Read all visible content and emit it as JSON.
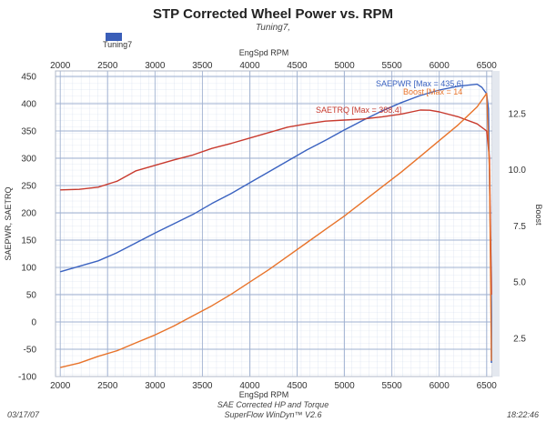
{
  "chart_data": {
    "type": "line",
    "title": "STP Corrected Wheel Power vs. RPM",
    "subtitle": "Tuning7,",
    "legend": [
      {
        "name": "Tuning7",
        "color": "#3a5eb8"
      }
    ],
    "xlabel_top": "EngSpd  RPM",
    "xlabel_bottom": "EngSpd  RPM",
    "ylabel_left": "SAEPWR, SAETRQ",
    "ylabel_right": "Boost",
    "xlim": [
      1950,
      6560
    ],
    "ylim_left": [
      -100,
      460
    ],
    "ylim_right": [
      0.8,
      14.4
    ],
    "x_ticks": [
      2000,
      2500,
      3000,
      3500,
      4000,
      4500,
      5000,
      5500,
      6000,
      6500
    ],
    "y_ticks_left": [
      -100,
      -50,
      0,
      50,
      100,
      150,
      200,
      250,
      300,
      350,
      400,
      450
    ],
    "y_ticks_right": [
      2.5,
      5.0,
      7.5,
      10.0,
      12.5
    ],
    "series": [
      {
        "name": "SAEPWR",
        "axis": "left",
        "color": "#3a62c0",
        "label": "SAEPWR [Max = 435.6]",
        "x": [
          2000,
          2200,
          2400,
          2600,
          2800,
          3000,
          3200,
          3400,
          3600,
          3800,
          4000,
          4200,
          4400,
          4600,
          4800,
          5000,
          5200,
          5400,
          5600,
          5800,
          6000,
          6200,
          6400,
          6450,
          6500,
          6520,
          6540,
          6550,
          6550
        ],
        "values": [
          92,
          102,
          112,
          127,
          145,
          163,
          180,
          197,
          217,
          235,
          255,
          275,
          295,
          315,
          333,
          352,
          370,
          387,
          402,
          415,
          425,
          432,
          435.6,
          430,
          418,
          390,
          150,
          10,
          -75
        ]
      },
      {
        "name": "SAETRQ",
        "axis": "left",
        "color": "#c83a2e",
        "label": "SAETRQ [Max = 388.4]",
        "x": [
          2000,
          2200,
          2400,
          2600,
          2800,
          3000,
          3200,
          3400,
          3600,
          3800,
          4000,
          4200,
          4400,
          4600,
          4800,
          5000,
          5200,
          5400,
          5600,
          5800,
          5900,
          6000,
          6200,
          6400,
          6500,
          6530,
          6550
        ],
        "values": [
          242,
          243,
          247,
          258,
          277,
          287,
          297,
          306,
          318,
          327,
          337,
          347,
          357,
          363,
          368,
          370,
          372,
          376,
          381,
          388.4,
          388,
          385,
          376,
          363,
          350,
          300,
          50
        ]
      },
      {
        "name": "Boost",
        "axis": "right",
        "color": "#e8732a",
        "label": "Boost  [Max = 14",
        "x": [
          2000,
          2200,
          2400,
          2600,
          2800,
          3000,
          3200,
          3400,
          3600,
          3800,
          4000,
          4200,
          4400,
          4600,
          4800,
          5000,
          5200,
          5400,
          5600,
          5800,
          6000,
          6200,
          6400,
          6500,
          6530,
          6550
        ],
        "values": [
          1.2,
          1.4,
          1.7,
          1.95,
          2.3,
          2.65,
          3.05,
          3.5,
          3.95,
          4.45,
          5.0,
          5.55,
          6.15,
          6.75,
          7.35,
          7.95,
          8.6,
          9.25,
          9.9,
          10.6,
          11.3,
          12.0,
          12.8,
          13.4,
          10.0,
          1.5
        ]
      }
    ],
    "footer_center": [
      "SAE Corrected HP and Torque",
      "SuperFlow WinDyn™ V2.6"
    ],
    "date": "03/17/07",
    "time": "18:22:46"
  }
}
